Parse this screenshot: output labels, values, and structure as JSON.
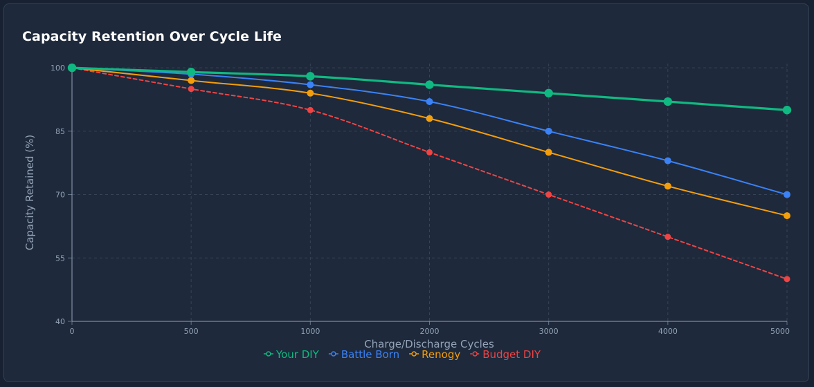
{
  "card": {
    "title": "Capacity Retention Over Cycle Life"
  },
  "chart_data": {
    "type": "line",
    "title": "Capacity Retention Over Cycle Life",
    "xlabel": "Charge/Discharge Cycles",
    "ylabel": "Capacity Retained (%)",
    "categories": [
      "0",
      "500",
      "1000",
      "2000",
      "3000",
      "4000",
      "5000"
    ],
    "yticks": [
      "40",
      "55",
      "70",
      "85",
      "100"
    ],
    "ylim": [
      40,
      101
    ],
    "grid": true,
    "legend_position": "bottom",
    "series": [
      {
        "name": "Your DIY",
        "values": [
          100,
          99,
          98,
          96,
          94,
          92,
          90
        ],
        "color": "#10b981",
        "dashed": false,
        "line_width": 3.2,
        "marker_radius": 6.2
      },
      {
        "name": "Battle Born",
        "values": [
          100,
          98.5,
          96,
          92,
          85,
          78,
          70
        ],
        "color": "#3b82f6",
        "dashed": false,
        "line_width": 2,
        "marker_radius": 5
      },
      {
        "name": "Renogy",
        "values": [
          100,
          97,
          94,
          88,
          80,
          72,
          65
        ],
        "color": "#f59e0b",
        "dashed": false,
        "line_width": 2,
        "marker_radius": 5
      },
      {
        "name": "Budget DIY",
        "values": [
          100,
          95,
          90,
          80,
          70,
          60,
          50
        ],
        "color": "#ef4444",
        "dashed": true,
        "line_width": 2,
        "marker_radius": 4.5
      }
    ]
  }
}
